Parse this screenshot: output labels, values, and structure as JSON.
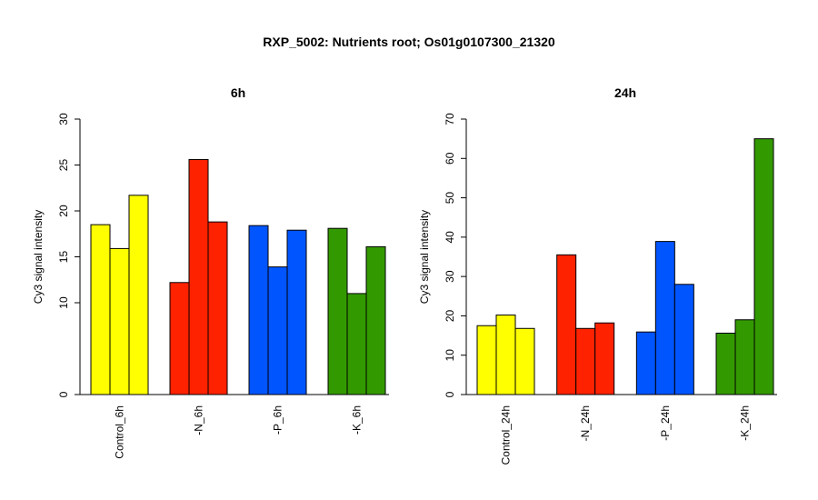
{
  "title": "RXP_5002: Nutrients root; Os01g0107300_21320",
  "chart_data": [
    {
      "type": "bar",
      "title": "6h",
      "ylabel": "Cy3 signal intensity",
      "xlabel": "",
      "ylim": [
        0,
        30
      ],
      "yticks": [
        0,
        10,
        15,
        20,
        25,
        30
      ],
      "categories": [
        "Control_6h",
        "-N_6h",
        "-P_6h",
        "-K_6h"
      ],
      "group_colors": [
        "#FFFF00",
        "#FF2200",
        "#0055FF",
        "#339900"
      ],
      "values": [
        [
          18.5,
          15.9,
          21.7
        ],
        [
          12.2,
          25.6,
          18.8
        ],
        [
          18.4,
          13.9,
          17.9
        ],
        [
          18.1,
          11.0,
          16.1
        ]
      ]
    },
    {
      "type": "bar",
      "title": "24h",
      "ylabel": "Cy3 signal intensity",
      "xlabel": "",
      "ylim": [
        0,
        70
      ],
      "yticks": [
        0,
        10,
        20,
        30,
        40,
        50,
        60,
        70
      ],
      "categories": [
        "Control_24h",
        "-N_24h",
        "-P_24h",
        "-K_24h"
      ],
      "group_colors": [
        "#FFFF00",
        "#FF2200",
        "#0055FF",
        "#339900"
      ],
      "values": [
        [
          17.5,
          20.2,
          16.8
        ],
        [
          35.5,
          16.8,
          18.2
        ],
        [
          15.9,
          38.9,
          28.0
        ],
        [
          15.6,
          19.0,
          65.0
        ]
      ]
    }
  ]
}
